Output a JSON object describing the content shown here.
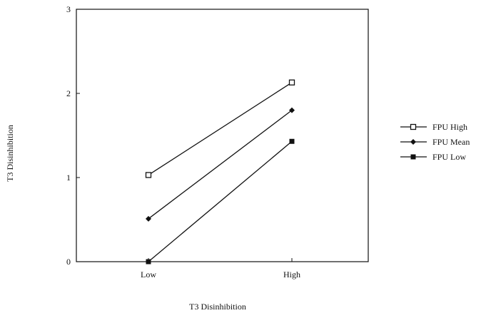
{
  "chart_data": {
    "type": "line",
    "title": "",
    "xlabel": "T3 Disinhibition",
    "ylabel": "T3 Disinhibition",
    "categories": [
      "Low",
      "High"
    ],
    "ylim": [
      0,
      3
    ],
    "yticks": [
      "0",
      "1",
      "2",
      "3"
    ],
    "grid": false,
    "legend_position": "right",
    "series": [
      {
        "name": "FPU High",
        "values": [
          1.03,
          2.13
        ],
        "marker": "open-square"
      },
      {
        "name": "FPU Mean",
        "values": [
          0.51,
          1.8
        ],
        "marker": "filled-diamond"
      },
      {
        "name": "FPU Low",
        "values": [
          0.0,
          1.43
        ],
        "marker": "filled-square"
      }
    ],
    "colors": {
      "line": "#111111",
      "frame": "#111111",
      "background": "#ffffff"
    }
  }
}
